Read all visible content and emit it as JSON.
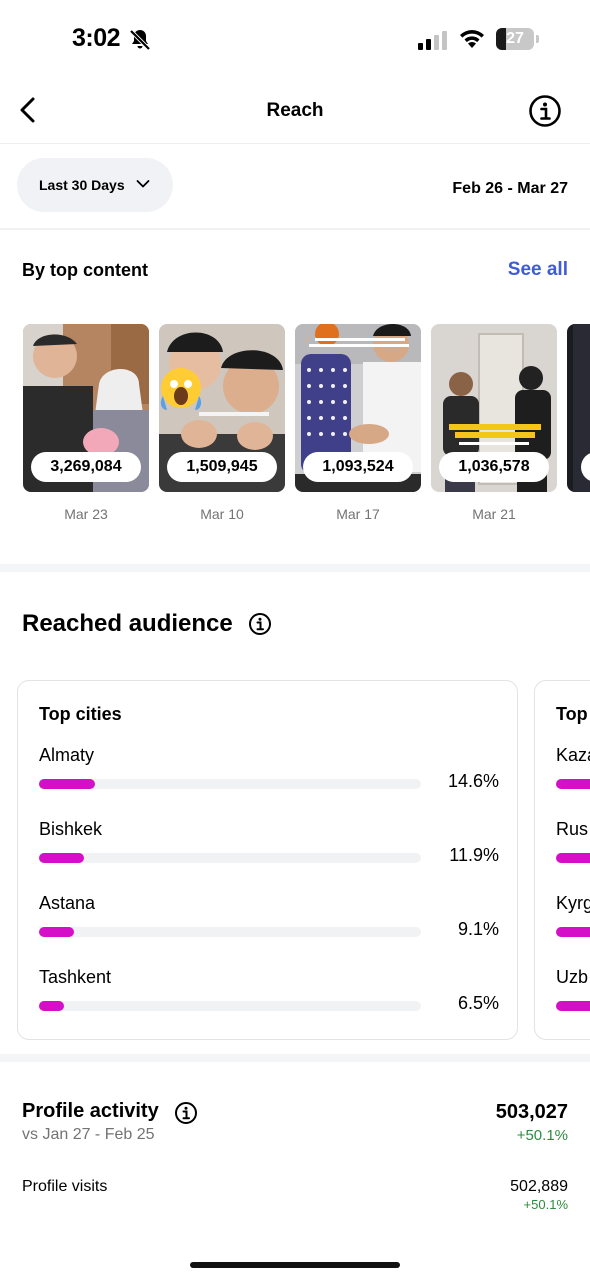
{
  "status_bar": {
    "time": "3:02",
    "battery": "27",
    "battery_level": 0.27
  },
  "header": {
    "title": "Reach"
  },
  "filter": {
    "range_label": "Last 30 Days",
    "date_range": "Feb 26 - Mar 27"
  },
  "top_content": {
    "title": "By top content",
    "see_all": "See all",
    "items": [
      {
        "reach": "3,269,084",
        "date": "Mar 23"
      },
      {
        "reach": "1,509,945",
        "date": "Mar 10"
      },
      {
        "reach": "1,093,524",
        "date": "Mar 17"
      },
      {
        "reach": "1,036,578",
        "date": "Mar 21"
      }
    ]
  },
  "audience": {
    "title": "Reached audience",
    "cards": [
      {
        "title": "Top cities",
        "rows": [
          {
            "name": "Almaty",
            "percent": "14.6%",
            "value": 14.6
          },
          {
            "name": "Bishkek",
            "percent": "11.9%",
            "value": 11.9
          },
          {
            "name": "Astana",
            "percent": "9.1%",
            "value": 9.1
          },
          {
            "name": "Tashkent",
            "percent": "6.5%",
            "value": 6.5
          }
        ]
      },
      {
        "title": "Top",
        "rows": [
          {
            "name": "Kaza",
            "percent": "",
            "value": 20
          },
          {
            "name": "Rus",
            "percent": "",
            "value": 16
          },
          {
            "name": "Kyrg",
            "percent": "",
            "value": 12
          },
          {
            "name": "Uzb",
            "percent": "",
            "value": 10
          }
        ]
      }
    ]
  },
  "profile_activity": {
    "title": "Profile activity",
    "comparison": "vs Jan 27 - Feb 25",
    "total": "503,027",
    "total_change": "+50.1%",
    "rows": [
      {
        "label": "Profile visits",
        "value": "502,889",
        "change": "+50.1%"
      }
    ]
  },
  "colors": {
    "accent_link": "#3f5bd6",
    "bar": "#d40fc7",
    "positive": "#2e8b3e"
  }
}
